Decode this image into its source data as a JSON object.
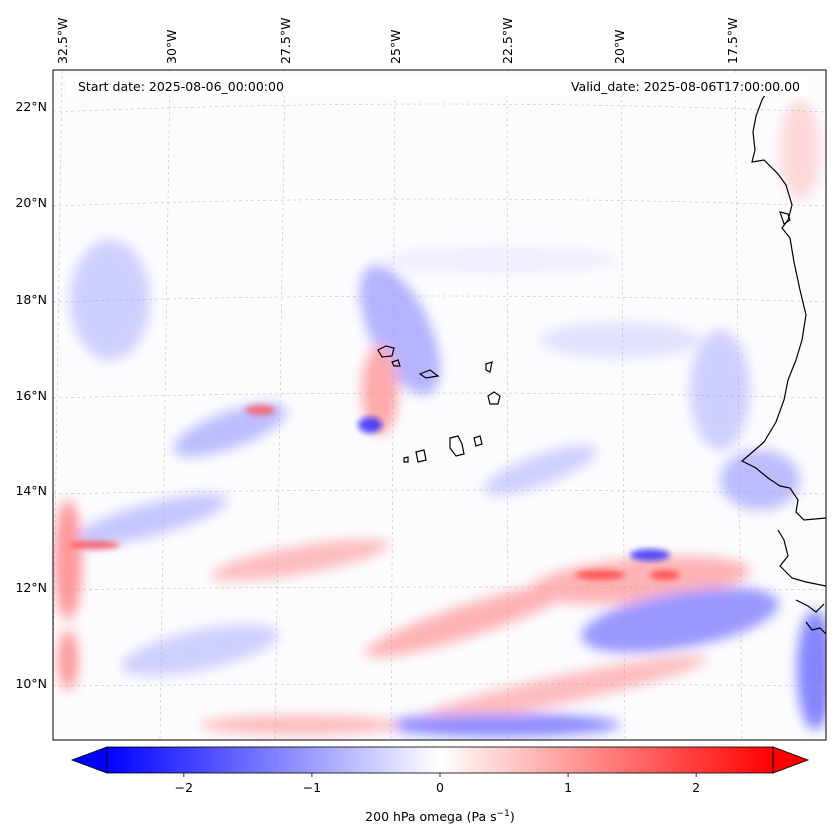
{
  "map": {
    "start_date_text": "Start date: 2025-08-06_00:00:00",
    "valid_date_text": "Valid_date: 2025-08-06T17:00:00.00",
    "lon_labels": [
      "32.5°W",
      "30°W",
      "27.5°W",
      "25°W",
      "22.5°W",
      "20°W",
      "17.5°W"
    ],
    "lat_labels": [
      "22°N",
      "20°N",
      "18°N",
      "16°N",
      "14°N",
      "12°N",
      "10°N"
    ],
    "land_color": "#000000",
    "grid": true
  },
  "colorbar": {
    "variable": "200 hPa omega",
    "unit": "(Pa s",
    "unit_exp": "−1",
    "unit_close": ")",
    "tick_labels": [
      "−2",
      "−1",
      "0",
      "1",
      "2"
    ],
    "tick_values": [
      -2,
      -1,
      0,
      1,
      2
    ],
    "range": [
      -2.6,
      2.6
    ],
    "cmap": "bwr",
    "colors": {
      "neg": "#0000ff",
      "mid": "#ffffff",
      "pos": "#ff0000"
    },
    "extend": "both"
  }
}
